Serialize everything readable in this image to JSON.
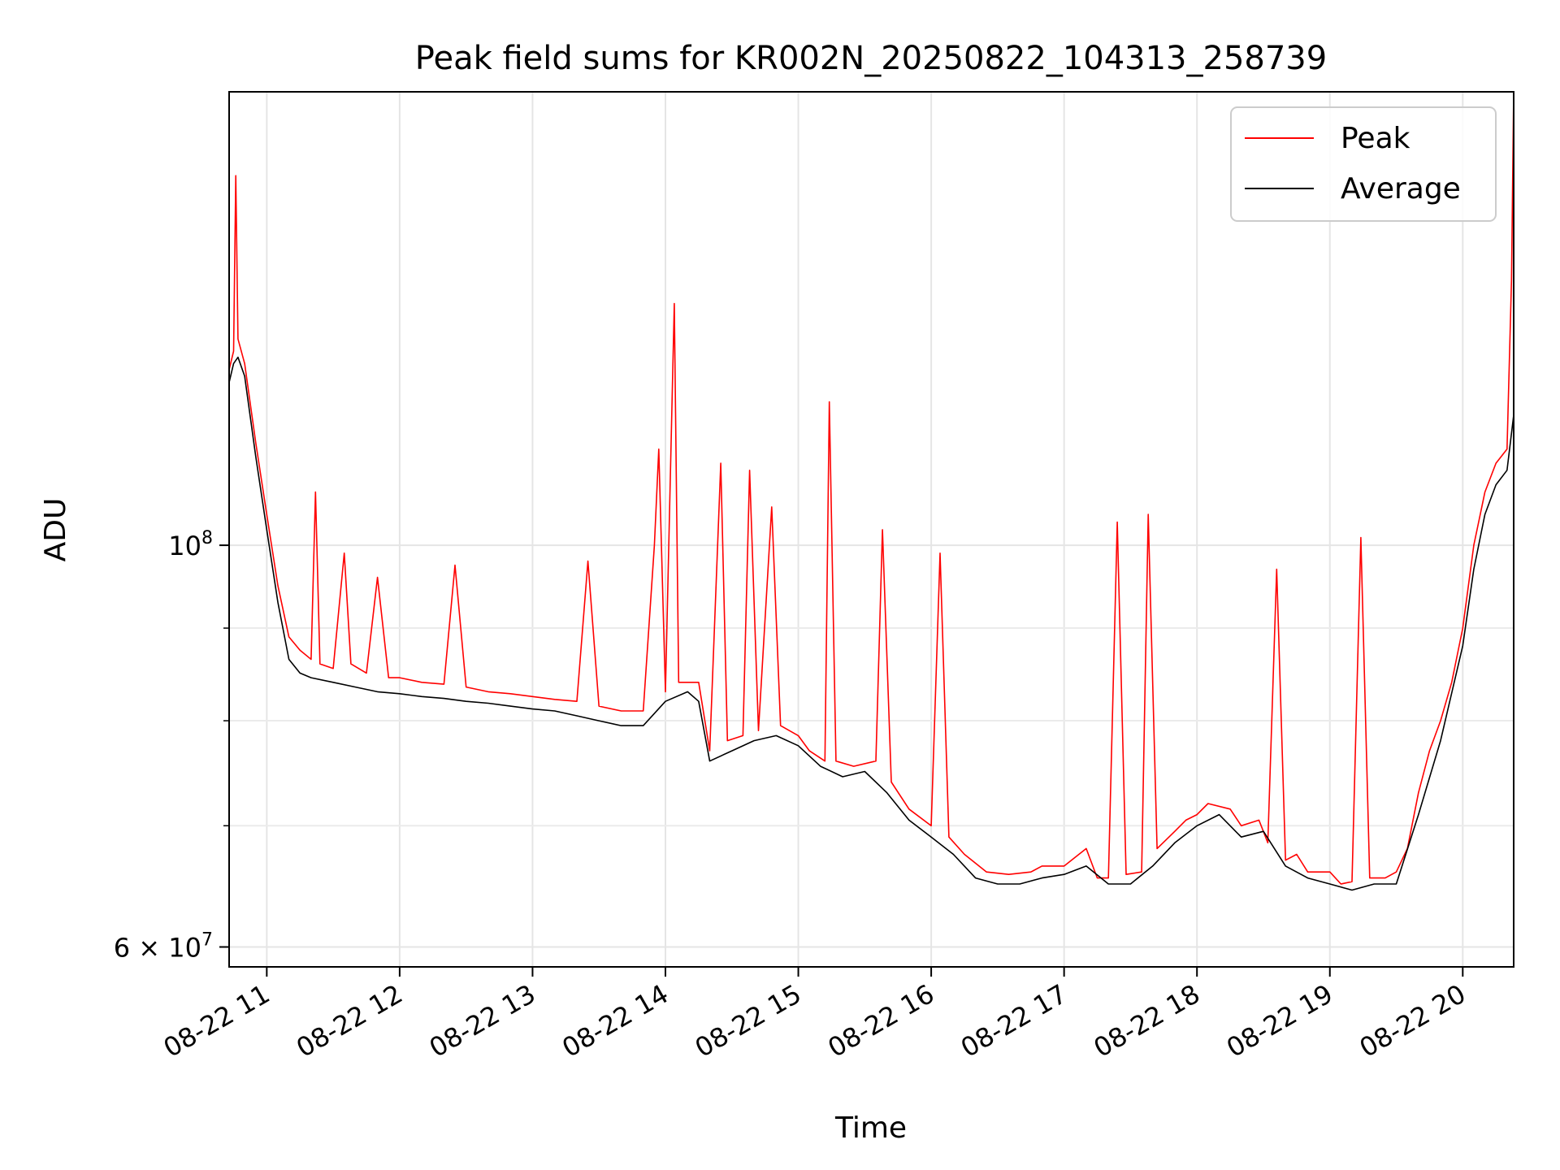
{
  "chart_data": {
    "type": "line",
    "title": "Peak field sums for KR002N_20250822_104313_258739",
    "xlabel": "Time",
    "ylabel": "ADU",
    "yscale": "log",
    "ylim": [
      58500000,
      178000000
    ],
    "xlim": [
      "08-22 10:43",
      "08-22 20:23"
    ],
    "grid": true,
    "legend_position": "upper right",
    "x_ticks": [
      "08-22 11",
      "08-22 12",
      "08-22 13",
      "08-22 14",
      "08-22 15",
      "08-22 16",
      "08-22 17",
      "08-22 18",
      "08-22 19",
      "08-22 20"
    ],
    "y_ticks_major": [
      {
        "value": 60000000,
        "label": "6 × 10^7"
      },
      {
        "value": 100000000,
        "label": "10^8"
      }
    ],
    "y_ticks_minor": [
      70000000,
      80000000,
      90000000
    ],
    "series": [
      {
        "name": "Peak",
        "color": "#ff0000",
        "points": [
          [
            "10:43",
            125000000
          ],
          [
            "10:45",
            128000000
          ],
          [
            "10:46",
            160000000
          ],
          [
            "10:47",
            130000000
          ],
          [
            "10:50",
            126000000
          ],
          [
            "10:55",
            114000000
          ],
          [
            "11:00",
            104000000
          ],
          [
            "11:05",
            95000000
          ],
          [
            "11:10",
            89000000
          ],
          [
            "11:15",
            87500000
          ],
          [
            "11:20",
            86500000
          ],
          [
            "11:22",
            107000000
          ],
          [
            "11:24",
            86000000
          ],
          [
            "11:30",
            85500000
          ],
          [
            "11:35",
            99000000
          ],
          [
            "11:38",
            86000000
          ],
          [
            "11:45",
            85000000
          ],
          [
            "11:50",
            96000000
          ],
          [
            "11:55",
            84500000
          ],
          [
            "12:00",
            84500000
          ],
          [
            "12:10",
            84000000
          ],
          [
            "12:20",
            83800000
          ],
          [
            "12:25",
            97500000
          ],
          [
            "12:30",
            83500000
          ],
          [
            "12:40",
            83000000
          ],
          [
            "12:50",
            82800000
          ],
          [
            "13:00",
            82500000
          ],
          [
            "13:10",
            82200000
          ],
          [
            "13:20",
            82000000
          ],
          [
            "13:25",
            98000000
          ],
          [
            "13:30",
            81500000
          ],
          [
            "13:40",
            81000000
          ],
          [
            "13:50",
            81000000
          ],
          [
            "13:55",
            100000000
          ],
          [
            "13:57",
            113000000
          ],
          [
            "14:00",
            83000000
          ],
          [
            "14:04",
            136000000
          ],
          [
            "14:06",
            84000000
          ],
          [
            "14:15",
            84000000
          ],
          [
            "14:20",
            77000000
          ],
          [
            "14:25",
            111000000
          ],
          [
            "14:28",
            78000000
          ],
          [
            "14:35",
            78500000
          ],
          [
            "14:38",
            110000000
          ],
          [
            "14:42",
            79000000
          ],
          [
            "14:48",
            105000000
          ],
          [
            "14:52",
            79500000
          ],
          [
            "15:00",
            78500000
          ],
          [
            "15:05",
            77000000
          ],
          [
            "15:12",
            76000000
          ],
          [
            "15:14",
            120000000
          ],
          [
            "15:17",
            76000000
          ],
          [
            "15:25",
            75500000
          ],
          [
            "15:35",
            76000000
          ],
          [
            "15:38",
            102000000
          ],
          [
            "15:42",
            74000000
          ],
          [
            "15:50",
            71500000
          ],
          [
            "16:00",
            70000000
          ],
          [
            "16:04",
            99000000
          ],
          [
            "16:08",
            69000000
          ],
          [
            "16:15",
            67500000
          ],
          [
            "16:25",
            66000000
          ],
          [
            "16:35",
            65800000
          ],
          [
            "16:45",
            66000000
          ],
          [
            "16:50",
            66500000
          ],
          [
            "17:00",
            66500000
          ],
          [
            "17:10",
            68000000
          ],
          [
            "17:15",
            65500000
          ],
          [
            "17:20",
            65500000
          ],
          [
            "17:24",
            103000000
          ],
          [
            "17:28",
            65800000
          ],
          [
            "17:35",
            66000000
          ],
          [
            "17:38",
            104000000
          ],
          [
            "17:42",
            68000000
          ],
          [
            "17:50",
            69500000
          ],
          [
            "17:55",
            70500000
          ],
          [
            "18:00",
            71000000
          ],
          [
            "18:05",
            72000000
          ],
          [
            "18:15",
            71500000
          ],
          [
            "18:20",
            70000000
          ],
          [
            "18:28",
            70500000
          ],
          [
            "18:32",
            68500000
          ],
          [
            "18:36",
            97000000
          ],
          [
            "18:40",
            67000000
          ],
          [
            "18:45",
            67500000
          ],
          [
            "18:50",
            66000000
          ],
          [
            "19:00",
            66000000
          ],
          [
            "19:05",
            65000000
          ],
          [
            "19:10",
            65200000
          ],
          [
            "19:14",
            101000000
          ],
          [
            "19:18",
            65500000
          ],
          [
            "19:25",
            65500000
          ],
          [
            "19:30",
            66000000
          ],
          [
            "19:35",
            68000000
          ],
          [
            "19:40",
            73000000
          ],
          [
            "19:45",
            77000000
          ],
          [
            "19:50",
            80000000
          ],
          [
            "19:55",
            84000000
          ],
          [
            "20:00",
            90000000
          ],
          [
            "20:05",
            100000000
          ],
          [
            "20:10",
            107000000
          ],
          [
            "20:15",
            111000000
          ],
          [
            "20:20",
            113000000
          ],
          [
            "20:22",
            140000000
          ],
          [
            "20:23",
            178000000
          ]
        ]
      },
      {
        "name": "Average",
        "color": "#000000",
        "points": [
          [
            "10:43",
            123000000
          ],
          [
            "10:45",
            126000000
          ],
          [
            "10:47",
            127000000
          ],
          [
            "10:50",
            124000000
          ],
          [
            "10:55",
            112000000
          ],
          [
            "11:00",
            102000000
          ],
          [
            "11:05",
            93000000
          ],
          [
            "11:10",
            86500000
          ],
          [
            "11:15",
            85000000
          ],
          [
            "11:20",
            84500000
          ],
          [
            "11:30",
            84000000
          ],
          [
            "11:40",
            83500000
          ],
          [
            "11:50",
            83000000
          ],
          [
            "12:00",
            82800000
          ],
          [
            "12:10",
            82500000
          ],
          [
            "12:20",
            82300000
          ],
          [
            "12:30",
            82000000
          ],
          [
            "12:40",
            81800000
          ],
          [
            "12:50",
            81500000
          ],
          [
            "13:00",
            81200000
          ],
          [
            "13:10",
            81000000
          ],
          [
            "13:20",
            80500000
          ],
          [
            "13:30",
            80000000
          ],
          [
            "13:40",
            79500000
          ],
          [
            "13:50",
            79500000
          ],
          [
            "14:00",
            82000000
          ],
          [
            "14:10",
            83000000
          ],
          [
            "14:15",
            82000000
          ],
          [
            "14:20",
            76000000
          ],
          [
            "14:30",
            77000000
          ],
          [
            "14:40",
            78000000
          ],
          [
            "14:50",
            78500000
          ],
          [
            "15:00",
            77500000
          ],
          [
            "15:10",
            75500000
          ],
          [
            "15:20",
            74500000
          ],
          [
            "15:30",
            75000000
          ],
          [
            "15:40",
            73000000
          ],
          [
            "15:50",
            70500000
          ],
          [
            "16:00",
            69000000
          ],
          [
            "16:10",
            67500000
          ],
          [
            "16:20",
            65500000
          ],
          [
            "16:30",
            65000000
          ],
          [
            "16:40",
            65000000
          ],
          [
            "16:50",
            65500000
          ],
          [
            "17:00",
            65800000
          ],
          [
            "17:10",
            66500000
          ],
          [
            "17:20",
            65000000
          ],
          [
            "17:30",
            65000000
          ],
          [
            "17:40",
            66500000
          ],
          [
            "17:50",
            68500000
          ],
          [
            "18:00",
            70000000
          ],
          [
            "18:10",
            71000000
          ],
          [
            "18:20",
            69000000
          ],
          [
            "18:30",
            69500000
          ],
          [
            "18:40",
            66500000
          ],
          [
            "18:50",
            65500000
          ],
          [
            "19:00",
            65000000
          ],
          [
            "19:10",
            64500000
          ],
          [
            "19:20",
            65000000
          ],
          [
            "19:30",
            65000000
          ],
          [
            "19:40",
            71000000
          ],
          [
            "19:50",
            78000000
          ],
          [
            "20:00",
            88000000
          ],
          [
            "20:05",
            97000000
          ],
          [
            "20:10",
            104000000
          ],
          [
            "20:15",
            108000000
          ],
          [
            "20:20",
            110000000
          ],
          [
            "20:23",
            118000000
          ]
        ]
      }
    ]
  }
}
